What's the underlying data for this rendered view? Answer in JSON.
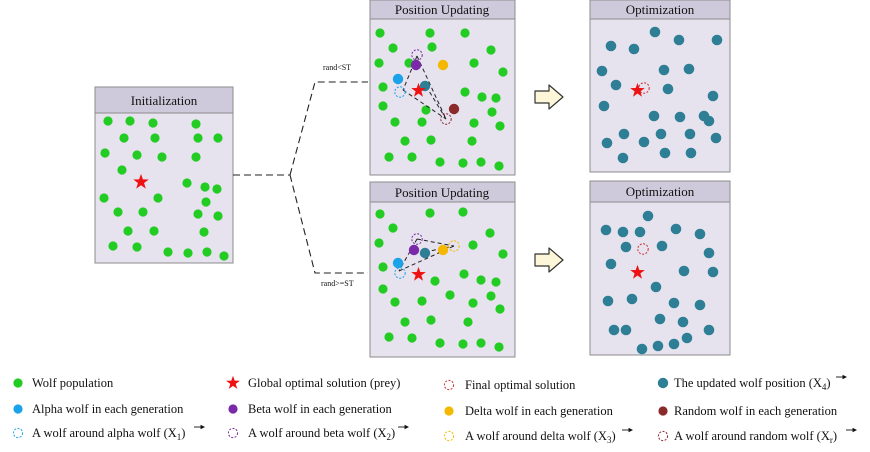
{
  "colors": {
    "wolf": "#22cc22",
    "alpha": "#1aa3e8",
    "beta": "#7a2aa8",
    "delta": "#f5b800",
    "random": "#8b2a2a",
    "updated": "#2e7f95",
    "star": "#ee1111",
    "final": "#d03030"
  },
  "panels": {
    "initialization": {
      "title": "Initialization"
    },
    "position_top": {
      "title": "Position Updating"
    },
    "optimization_top": {
      "title": "Optimization"
    },
    "position_bottom": {
      "title": "Position Updating"
    },
    "optimization_bottom": {
      "title": "Optimization"
    }
  },
  "branches": {
    "top": "rand<ST",
    "bottom": "rand>=ST"
  },
  "legend": {
    "wolf_population": "Wolf population",
    "global_optimal": "Global optimal solution (prey)",
    "final_optimal": "Final optimal solution",
    "updated_position": "The updated wolf position (X",
    "updated_sub": "4",
    "alpha_wolf": "Alpha wolf in each generation",
    "beta_wolf": "Beta wolf in each generation",
    "delta_wolf": "Delta wolf in each generation",
    "random_wolf": "Random wolf in each generation",
    "around_alpha": "A wolf around alpha wolf (X",
    "around_alpha_sub": "1",
    "around_beta": "A wolf around beta wolf (X",
    "around_beta_sub": "2",
    "around_delta": "A wolf around delta wolf (X",
    "around_delta_sub": "3",
    "around_random": "A wolf around random wolf (X",
    "around_random_sub": "r",
    "close_paren": ")"
  },
  "icons": {
    "flow_arrow": "hollow-right-arrow-icon",
    "prey": "red-star-icon"
  }
}
